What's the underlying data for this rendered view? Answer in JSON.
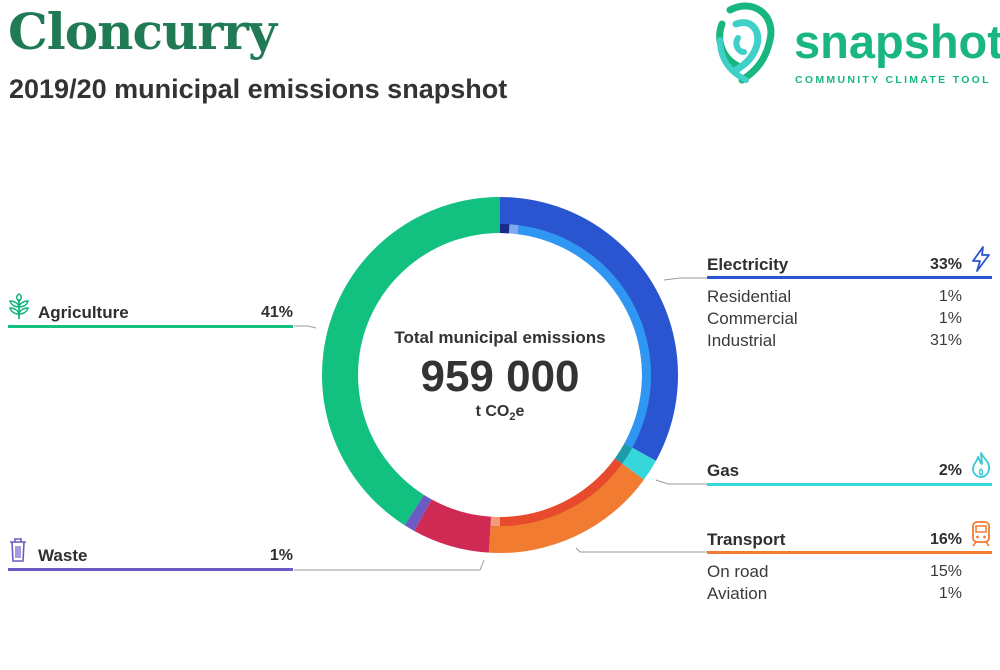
{
  "header": {
    "title": "Cloncurry",
    "subtitle": "2019/20 municipal emissions snapshot"
  },
  "logo": {
    "word": "snapshot",
    "tagline": "COMMUNITY CLIMATE TOOL",
    "color": "#19b77f"
  },
  "center": {
    "label": "Total municipal emissions",
    "value": "959 000",
    "unit_main": "t CO",
    "unit_sub": "2",
    "unit_end": "e"
  },
  "categories": {
    "electricity": {
      "label": "Electricity",
      "pct": "33%",
      "color": "#2a55d0",
      "icon": "lightning-icon",
      "items": [
        {
          "label": "Residential",
          "pct": "1%"
        },
        {
          "label": "Commercial",
          "pct": "1%"
        },
        {
          "label": "Industrial",
          "pct": "31%"
        }
      ]
    },
    "gas": {
      "label": "Gas",
      "pct": "2%",
      "color": "#35d6dc",
      "icon": "flame-icon"
    },
    "transport": {
      "label": "Transport",
      "pct": "16%",
      "color": "#f07b31",
      "icon": "train-icon",
      "items": [
        {
          "label": "On road",
          "pct": "15%"
        },
        {
          "label": "Aviation",
          "pct": "1%"
        }
      ]
    },
    "waste": {
      "label": "Waste",
      "pct": "1%",
      "color": "#6c5bc4",
      "icon": "trash-icon"
    },
    "agriculture": {
      "label": "Agriculture",
      "pct": "41%",
      "color": "#12c07f",
      "icon": "plant-icon"
    }
  },
  "chart_data": {
    "type": "pie",
    "total": 959000,
    "unit": "t CO2e",
    "slices": [
      {
        "name": "Electricity",
        "value": 33,
        "color": "#2a55d0"
      },
      {
        "name": "Gas",
        "value": 2,
        "color": "#35d6dc"
      },
      {
        "name": "Transport",
        "value": 16,
        "color": "#f07b31"
      },
      {
        "name": "",
        "value": 7,
        "color": "#cf2a54"
      },
      {
        "name": "Waste",
        "value": 1,
        "color": "#6c5bc4"
      },
      {
        "name": "Agriculture",
        "value": 41,
        "color": "#12c07f"
      }
    ],
    "inner_ring": [
      {
        "name": "Residential",
        "value": 1,
        "color": "#1b2a86"
      },
      {
        "name": "Commercial",
        "value": 1,
        "color": "#7fa8ef"
      },
      {
        "name": "Industrial",
        "value": 31,
        "color": "#2f97f2"
      },
      {
        "name": "Gas",
        "value": 2,
        "color": "#1f9aa8"
      },
      {
        "name": "On road",
        "value": 15,
        "color": "#e84a2e"
      },
      {
        "name": "Aviation",
        "value": 1,
        "color": "#f59b79"
      }
    ]
  }
}
